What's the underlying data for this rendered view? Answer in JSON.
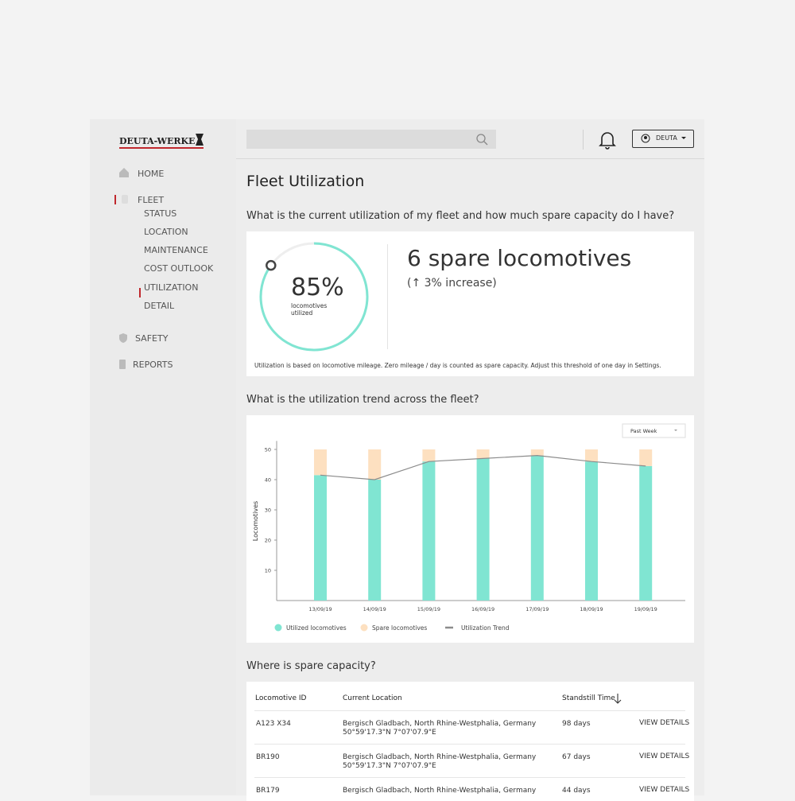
{
  "sidebar": {
    "logo": "DEUTA-WERKE",
    "nav": [
      {
        "label": "HOME"
      },
      {
        "label": "FLEET",
        "children": [
          "STATUS",
          "LOCATION",
          "MAINTENANCE",
          "COST OUTLOOK",
          "UTILIZATION",
          "DETAIL"
        ]
      },
      {
        "label": "SAFETY"
      },
      {
        "label": "REPORTS"
      }
    ]
  },
  "header": {
    "user": "DEUTA"
  },
  "page": {
    "title": "Fleet Utilization",
    "question_1": "What is the current utilization of my fleet and how much spare capacity do I have?",
    "question_2": "What is the utilization trend across the fleet?",
    "question_3": "Where is spare capacity?"
  },
  "summary": {
    "gauge": {
      "value": 85,
      "value_label": "85%",
      "caption": [
        "locomotives",
        "utilized"
      ]
    },
    "headline": "6 spare locomotives",
    "change": "(↑ 3% increase)",
    "note": "Utilization is based on locomotive mileage. Zero mileage / day is counted as spare capacity. Adjust this threshold of one day in Settings."
  },
  "chart_data": {
    "type": "bar",
    "stacked": true,
    "period": "Past Week",
    "y_label": "Locomotives",
    "categories": [
      "13/09/19",
      "14/09/19",
      "15/09/19",
      "16/09/19",
      "17/09/19",
      "18/09/19",
      "19/09/19"
    ],
    "series": [
      {
        "name": "Utilized locomotives",
        "color": "#80e5d2",
        "values": [
          41.5,
          40,
          46,
          47,
          48,
          46,
          44.5
        ]
      },
      {
        "name": "Spare locomotives",
        "color": "#fde0c0",
        "values": [
          8.5,
          10,
          4,
          3,
          2,
          4,
          5.5
        ]
      },
      {
        "name": "Utilization Trend",
        "color": "#8c8c8c",
        "type": "line",
        "values": [
          41.5,
          40,
          46,
          47,
          48,
          46,
          44.5
        ]
      }
    ],
    "ylim": [
      0,
      52
    ],
    "yticks": [
      10,
      20,
      30,
      40,
      50
    ],
    "grid": false,
    "legend": "bottom"
  },
  "table": {
    "columns": [
      "Locomotive ID",
      "Current Location",
      "Standstill Time"
    ],
    "rows": [
      [
        "A123 X34",
        [
          "Bergisch Gladbach, North Rhine-Westphalia, Germany",
          "50°59'17.3\"N 7°07'07.9\"E"
        ],
        "98 days",
        "VIEW DETAILS"
      ],
      [
        "BR190",
        [
          "Bergisch Gladbach, North Rhine-Westphalia, Germany",
          "50°59'17.3\"N 7°07'07.9\"E"
        ],
        "67 days",
        "VIEW DETAILS"
      ],
      [
        "BR179",
        [
          "Bergisch Gladbach, North Rhine-Westphalia, Germany"
        ],
        "44 days",
        "VIEW DETAILS"
      ]
    ]
  }
}
